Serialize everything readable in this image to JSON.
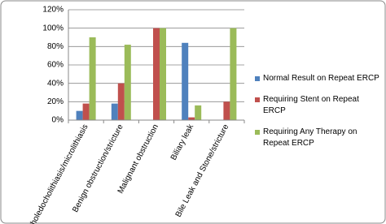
{
  "chart_data": {
    "type": "bar",
    "categories": [
      "Choledocholithiasis/microlithiasis",
      "Benign obstruction/stricture",
      "Malignant obstruction",
      "Biliary leak",
      "Bile Leak and Stone/stricture"
    ],
    "series": [
      {
        "name": "Normal Result on Repeat ERCP",
        "color": "#4f81bd",
        "values": [
          10,
          18,
          0,
          84,
          0
        ]
      },
      {
        "name": "Requiring Stent on Repeat ERCP",
        "color": "#c0504d",
        "values": [
          18,
          40,
          100,
          3,
          20
        ]
      },
      {
        "name": "Requiring Any Therapy on Repeat ERCP",
        "color": "#9bbb59",
        "values": [
          90,
          82,
          100,
          16,
          100
        ]
      }
    ],
    "ylim": [
      0,
      120
    ],
    "yticks": [
      {
        "value": 0,
        "label": "0%"
      },
      {
        "value": 20,
        "label": "20%"
      },
      {
        "value": 40,
        "label": "40%"
      },
      {
        "value": 60,
        "label": "60%"
      },
      {
        "value": 80,
        "label": "80%"
      },
      {
        "value": 100,
        "label": "100%"
      },
      {
        "value": 120,
        "label": "120%"
      }
    ],
    "grid": true,
    "legend": "right"
  }
}
